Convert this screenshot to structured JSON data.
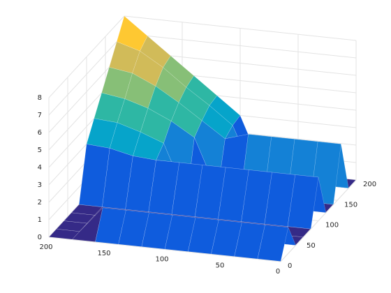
{
  "chart_data": {
    "type": "surface",
    "x": [
      0,
      20,
      40,
      60,
      80,
      100,
      120,
      140,
      160,
      180,
      200
    ],
    "y": [
      0,
      20,
      40,
      60,
      80,
      100,
      120,
      140,
      160,
      180,
      200
    ],
    "z": [
      [
        0,
        0,
        0,
        0,
        0,
        0,
        0,
        0,
        0,
        0,
        0
      ],
      [
        1.5,
        1.5,
        1.5,
        1.5,
        1.5,
        1.5,
        1.5,
        1.5,
        1.5,
        0,
        0
      ],
      [
        0,
        0,
        0,
        0,
        0,
        0,
        0,
        0,
        0,
        0,
        0
      ],
      [
        0,
        0,
        0,
        0,
        0,
        0,
        0,
        0,
        0,
        0,
        0
      ],
      [
        0,
        0,
        0,
        0,
        0,
        0,
        0,
        0,
        0,
        0,
        0
      ],
      [
        2.5,
        2.5,
        2.5,
        2.5,
        2.5,
        2.5,
        2.5,
        2.5,
        2.6,
        2.9,
        3
      ],
      [
        0,
        0,
        0,
        0,
        0,
        0,
        0,
        3,
        3.5,
        3.9,
        4
      ],
      [
        0,
        0,
        0,
        0,
        0,
        0,
        3,
        3.8,
        4.4,
        4.8,
        5
      ],
      [
        3,
        3,
        3,
        3,
        3,
        2.6,
        3.5,
        4.4,
        5.2,
        5.8,
        6
      ],
      [
        0,
        0,
        0,
        0,
        0,
        2.9,
        3.9,
        4.8,
        5.8,
        6.6,
        7
      ],
      [
        0,
        0,
        0,
        0,
        0,
        3,
        4,
        5,
        6,
        7,
        8
      ]
    ],
    "xlim": [
      0,
      200
    ],
    "ylim": [
      0,
      200
    ],
    "zlim": [
      0,
      8
    ],
    "xticks": [
      0,
      50,
      100,
      150,
      200
    ],
    "yticks": [
      0,
      50,
      100,
      150,
      200
    ],
    "zticks": [
      0,
      1,
      2,
      3,
      4,
      5,
      6,
      7,
      8
    ],
    "grid": true,
    "colormap": [
      "#352a87",
      "#0f5cdd",
      "#1481d6",
      "#06a4ca",
      "#2eb7a4",
      "#87bf77",
      "#d1bb59",
      "#fec832",
      "#f9fb0e"
    ]
  }
}
